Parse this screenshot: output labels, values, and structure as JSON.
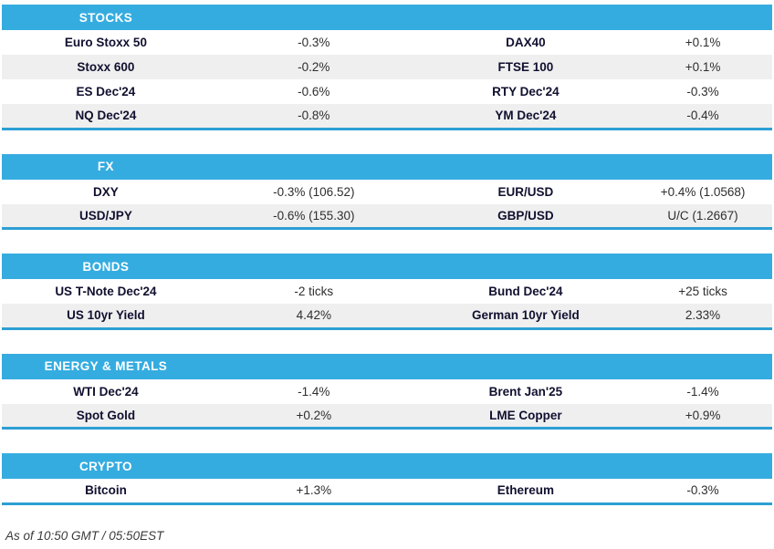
{
  "chart_data": [
    {
      "type": "table",
      "title": "STOCKS",
      "rows": [
        [
          "Euro Stoxx 50",
          "-0.3%",
          "DAX40",
          "+0.1%"
        ],
        [
          "Stoxx 600",
          "-0.2%",
          "FTSE 100",
          "+0.1%"
        ],
        [
          "ES Dec'24",
          "-0.6%",
          "RTY Dec'24",
          "-0.3%"
        ],
        [
          "NQ Dec'24",
          "-0.8%",
          "YM Dec'24",
          "-0.4%"
        ]
      ]
    },
    {
      "type": "table",
      "title": "FX",
      "rows": [
        [
          "DXY",
          "-0.3% (106.52)",
          "EUR/USD",
          "+0.4% (1.0568)"
        ],
        [
          "USD/JPY",
          "-0.6% (155.30)",
          "GBP/USD",
          "U/C (1.2667)"
        ]
      ]
    },
    {
      "type": "table",
      "title": "BONDS",
      "rows": [
        [
          "US T-Note Dec'24",
          "-2 ticks",
          "Bund Dec'24",
          "+25 ticks"
        ],
        [
          "US 10yr Yield",
          "4.42%",
          "German 10yr Yield",
          "2.33%"
        ]
      ]
    },
    {
      "type": "table",
      "title": "ENERGY & METALS",
      "rows": [
        [
          "WTI Dec'24",
          "-1.4%",
          "Brent Jan'25",
          "-1.4%"
        ],
        [
          "Spot Gold",
          "+0.2%",
          "LME Copper",
          "+0.9%"
        ]
      ]
    },
    {
      "type": "table",
      "title": "CRYPTO",
      "rows": [
        [
          "Bitcoin",
          "+1.3%",
          "Ethereum",
          "-0.3%"
        ]
      ]
    }
  ],
  "footer": {
    "note": "As of 10:50 GMT / 05:50EST"
  },
  "colors": {
    "header_bg": "#35ACE0",
    "section_border": "#2D9FD4",
    "row_stripe": "#EFEFEF",
    "label_text": "#101030",
    "value_text": "#2E2E2E"
  }
}
